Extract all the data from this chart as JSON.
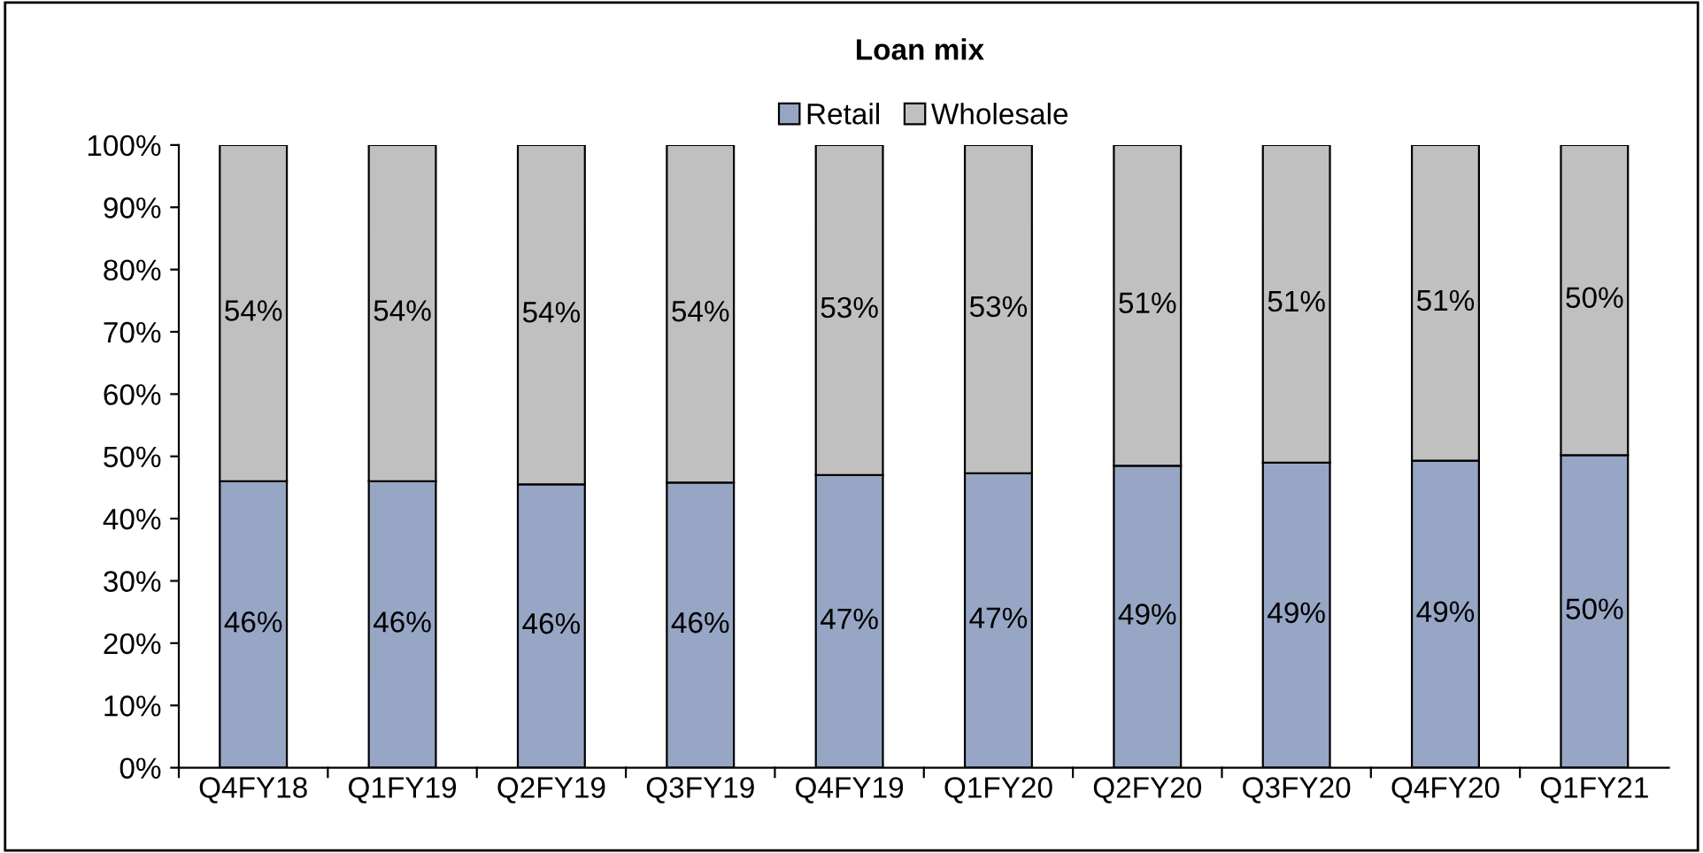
{
  "chart_data": {
    "type": "bar",
    "title": "Loan mix",
    "stacked": true,
    "legend": "top",
    "grid": false,
    "categories": [
      "Q4FY18",
      "Q1FY19",
      "Q2FY19",
      "Q3FY19",
      "Q4FY19",
      "Q1FY20",
      "Q2FY20",
      "Q3FY20",
      "Q4FY20",
      "Q1FY21"
    ],
    "series": [
      {
        "name": "Retail",
        "color": "#97a6c4",
        "values": [
          46,
          46,
          45.5,
          45.8,
          47,
          47.3,
          48.5,
          49,
          49.3,
          50.2
        ],
        "value_labels": [
          "46%",
          "46%",
          "46%",
          "46%",
          "47%",
          "47%",
          "49%",
          "49%",
          "49%",
          "50%"
        ]
      },
      {
        "name": "Wholesale",
        "color": "#c0c0c0",
        "values": [
          54,
          54,
          54.5,
          54.2,
          53,
          52.7,
          51.5,
          51,
          50.7,
          49.8
        ],
        "value_labels": [
          "54%",
          "54%",
          "54%",
          "54%",
          "53%",
          "53%",
          "51%",
          "51%",
          "51%",
          "50%"
        ]
      }
    ],
    "ylim": [
      0,
      100
    ],
    "yticks": [
      {
        "value": 0,
        "label": "0%"
      },
      {
        "value": 10,
        "label": "10%"
      },
      {
        "value": 20,
        "label": "20%"
      },
      {
        "value": 30,
        "label": "30%"
      },
      {
        "value": 40,
        "label": "40%"
      },
      {
        "value": 50,
        "label": "50%"
      },
      {
        "value": 60,
        "label": "60%"
      },
      {
        "value": 70,
        "label": "70%"
      },
      {
        "value": 80,
        "label": "80%"
      },
      {
        "value": 90,
        "label": "90%"
      },
      {
        "value": 100,
        "label": "100%"
      }
    ]
  }
}
